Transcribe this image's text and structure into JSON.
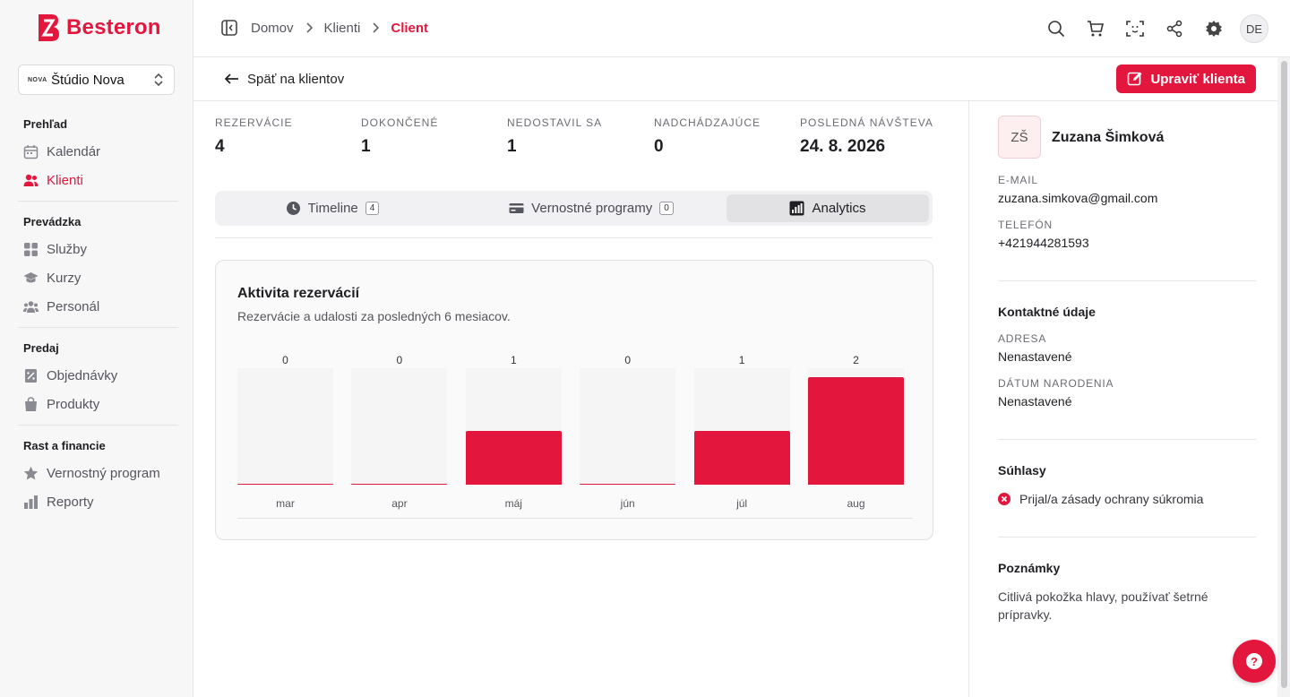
{
  "brand": {
    "name": "Besteron",
    "accent": "#e3173e"
  },
  "studio": {
    "logo_text": "NOVA",
    "name": "Štúdio Nova"
  },
  "sidebar": {
    "sections": [
      {
        "title": "Prehľad",
        "items": [
          {
            "label": "Kalendár",
            "icon": "calendar-icon"
          },
          {
            "label": "Klienti",
            "icon": "users-icon",
            "active": true
          }
        ]
      },
      {
        "title": "Prevádzka",
        "items": [
          {
            "label": "Služby",
            "icon": "grid-icon"
          },
          {
            "label": "Kurzy",
            "icon": "graduation-cap-icon"
          },
          {
            "label": "Personál",
            "icon": "team-icon"
          }
        ]
      },
      {
        "title": "Predaj",
        "items": [
          {
            "label": "Objednávky",
            "icon": "receipt-icon"
          },
          {
            "label": "Produkty",
            "icon": "bag-icon"
          }
        ]
      },
      {
        "title": "Rast a financie",
        "items": [
          {
            "label": "Vernostný program",
            "icon": "star-icon"
          },
          {
            "label": "Reporty",
            "icon": "bar-chart-icon"
          }
        ]
      }
    ]
  },
  "breadcrumb": {
    "home": "Domov",
    "clients": "Klienti",
    "current": "Client"
  },
  "topbar": {
    "user_initials": "DE"
  },
  "subheader": {
    "back_label": "Späť na klientov",
    "edit_label": "Upraviť klienta"
  },
  "stats": [
    {
      "label": "REZERVÁCIE",
      "value": "4"
    },
    {
      "label": "DOKONČENÉ",
      "value": "1"
    },
    {
      "label": "NEDOSTAVIL SA",
      "value": "1"
    },
    {
      "label": "NADCHÁDZAJÚCE",
      "value": "0"
    },
    {
      "label": "POSLEDNÁ NÁVŠTEVA",
      "value": "24. 8. 2026"
    }
  ],
  "tabs": [
    {
      "label": "Timeline",
      "count": "4",
      "icon": "clock-icon"
    },
    {
      "label": "Vernostné programy",
      "count": "0",
      "icon": "card-icon"
    },
    {
      "label": "Analytics",
      "icon": "bars-icon",
      "active": true
    }
  ],
  "card": {
    "title": "Aktivita rezervácií",
    "subtitle": "Rezervácie a udalosti za posledných 6 mesiacov."
  },
  "chart_data": {
    "type": "bar",
    "categories": [
      "mar",
      "apr",
      "máj",
      "jún",
      "júl",
      "aug"
    ],
    "values": [
      0,
      0,
      1,
      0,
      1,
      2
    ],
    "value_labels": [
      "0",
      "0",
      "1",
      "0",
      "1",
      "2"
    ],
    "ylim": [
      0,
      2
    ],
    "color": "#e3173e",
    "grid": false
  },
  "client": {
    "initials": "ZŠ",
    "name": "Zuzana Šimková",
    "email_label": "E-MAIL",
    "email": "zuzana.simkova@gmail.com",
    "phone_label": "TELEFÓN",
    "phone": "+421944281593",
    "contact_title": "Kontaktné údaje",
    "address_label": "ADRESA",
    "address": "Nenastavené",
    "birth_label": "DÁTUM NARODENIA",
    "birth": "Nenastavené",
    "consents_title": "Súhlasy",
    "consent_text": "Prijal/a zásady ochrany súkromia",
    "notes_title": "Poznámky",
    "notes": "Citlivá pokožka hlavy, používať šetrné prípravky."
  },
  "help": {
    "glyph": "?"
  }
}
